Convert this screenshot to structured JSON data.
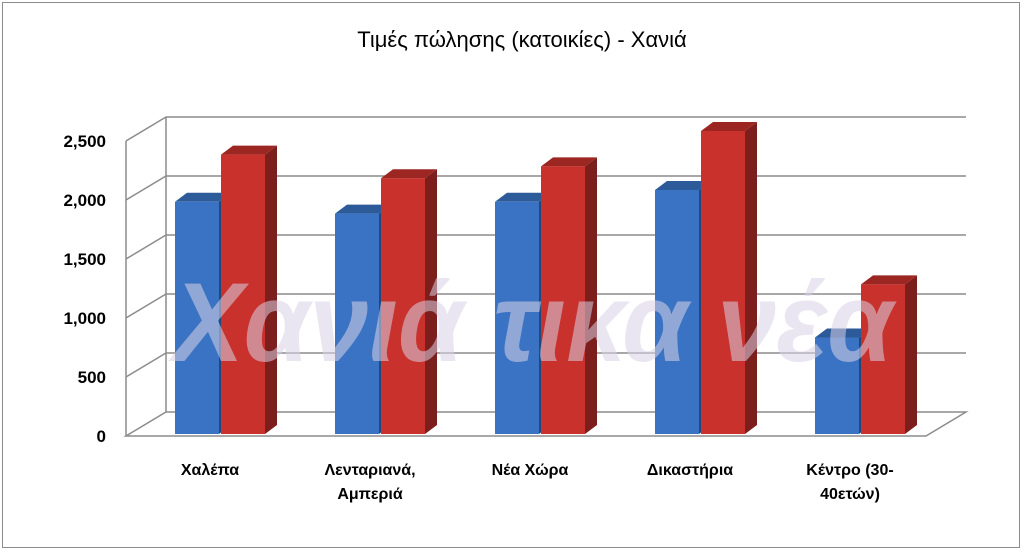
{
  "chart_data": {
    "type": "bar",
    "title": "Τιμές πώλησης (κατοικίες) - Χανιά",
    "xlabel": "",
    "ylabel": "",
    "categories": [
      [
        "Χαλέπα"
      ],
      [
        "Λενταριανά,",
        "Αμπεριά"
      ],
      [
        "Νέα Χώρα"
      ],
      [
        "Δικαστήρια"
      ],
      [
        "Κέντρο (30-",
        "40ετών)"
      ]
    ],
    "series": [
      {
        "values": [
          1900,
          1800,
          1900,
          2000,
          750
        ],
        "color": "#3a73c4"
      },
      {
        "values": [
          2300,
          2100,
          2200,
          2500,
          1200
        ],
        "color": "#c8312c"
      }
    ],
    "ylim": [
      0,
      2500
    ],
    "yticks": [
      "0",
      "500",
      "1,000",
      "1,500",
      "2,000",
      "2,500"
    ],
    "grid": true,
    "legend": "none",
    "style": "3d-column"
  },
  "watermark": "Χανιά τικα νέα"
}
